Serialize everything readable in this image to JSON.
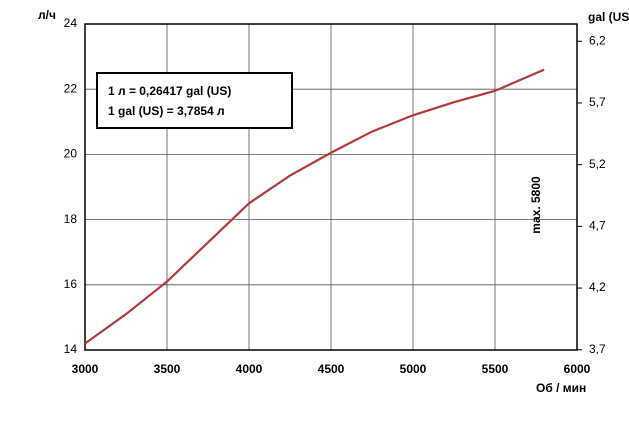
{
  "chart_data": {
    "type": "line",
    "y_label": "л/ч",
    "y2_label": "gal (US",
    "x_label": "Об / мин",
    "annotations": [
      "1 л = 0,26417 gal (US)",
      "1 gal (US) = 3,7854 л",
      "max. 5800"
    ],
    "x": [
      3000,
      3250,
      3500,
      3750,
      4000,
      4250,
      4500,
      4750,
      5000,
      5250,
      5500,
      5800
    ],
    "series": [
      {
        "color": "#b23a3a",
        "values": [
          14.2,
          15.1,
          16.1,
          17.3,
          18.5,
          19.35,
          20.05,
          20.7,
          21.2,
          21.6,
          21.95,
          22.6
        ]
      }
    ],
    "xlim": [
      3000,
      6000
    ],
    "xticks": [
      3000,
      3500,
      4000,
      4500,
      5000,
      5500,
      6000
    ],
    "ylim": [
      14,
      24
    ],
    "yticks": [
      14,
      16,
      18,
      20,
      22,
      24
    ],
    "y2lim": [
      3.698,
      6.34
    ],
    "y2ticks": [
      {
        "value": 3.7,
        "label": "3,7"
      },
      {
        "value": 4.2,
        "label": "4,2"
      },
      {
        "value": 4.7,
        "label": "4,7"
      },
      {
        "value": 5.2,
        "label": "5,2"
      },
      {
        "value": 5.7,
        "label": "5,7"
      },
      {
        "value": 6.2,
        "label": "6,2"
      }
    ],
    "grid": true
  }
}
